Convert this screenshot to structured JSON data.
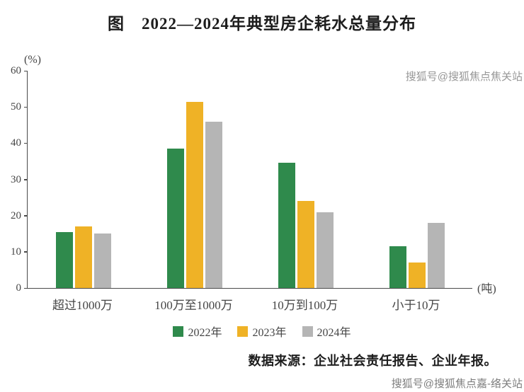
{
  "title": "图　2022—2024年典型房企耗水总量分布",
  "watermark_top": "搜狐号@搜狐焦点焦关站",
  "watermark_bottom": "搜狐号@搜狐焦点嘉-络关站",
  "source": "数据来源：企业社会责任报告、企业年报。",
  "chart_data": {
    "type": "bar",
    "title": "图　2022—2024年典型房企耗水总量分布",
    "unit_y": "(%)",
    "unit_x": "(吨)",
    "categories": [
      "超过1000万",
      "100万至1000万",
      "10万到100万",
      "小于10万"
    ],
    "series": [
      {
        "name": "2022年",
        "color": "#2f8a4c",
        "values": [
          15.5,
          38.5,
          34.5,
          11.5
        ]
      },
      {
        "name": "2023年",
        "color": "#efb226",
        "values": [
          17,
          51.5,
          24,
          7
        ]
      },
      {
        "name": "2024年",
        "color": "#b5b5b5",
        "values": [
          15,
          46,
          21,
          18
        ]
      }
    ],
    "ylim": [
      0,
      60
    ],
    "yticks": [
      0,
      10,
      20,
      30,
      40,
      50,
      60
    ],
    "grid": false,
    "legend_position": "bottom"
  }
}
